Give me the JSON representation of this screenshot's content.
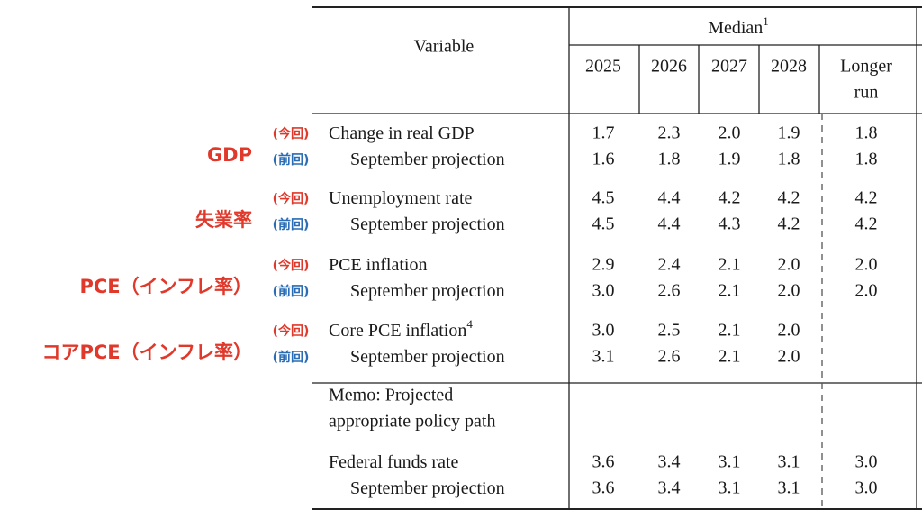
{
  "header": {
    "variable": "Variable",
    "median": "Median",
    "median_note": "1",
    "columns": [
      "2025",
      "2026",
      "2027",
      "2028"
    ],
    "longer_run": [
      "Longer",
      "run"
    ]
  },
  "annotations": [
    {
      "label": "GDP",
      "tags": [
        "(今回)",
        "(前回)"
      ]
    },
    {
      "label": "失業率",
      "tags": [
        "(今回)",
        "(前回)"
      ]
    },
    {
      "label": "PCE（インフレ率）",
      "tags": [
        "(今回)",
        "(前回)"
      ]
    },
    {
      "label": "コアPCE（インフレ率）",
      "tags": [
        "(今回)",
        "(前回)"
      ]
    }
  ],
  "table": {
    "groups": [
      [
        {
          "label": "Change in real GDP",
          "values": [
            "1.7",
            "2.3",
            "2.0",
            "1.9",
            "1.8"
          ]
        },
        {
          "label": "September projection",
          "values": [
            "1.6",
            "1.8",
            "1.9",
            "1.8",
            "1.8"
          ]
        }
      ],
      [
        {
          "label": "Unemployment rate",
          "values": [
            "4.5",
            "4.4",
            "4.2",
            "4.2",
            "4.2"
          ]
        },
        {
          "label": "September projection",
          "values": [
            "4.5",
            "4.4",
            "4.3",
            "4.2",
            "4.2"
          ]
        }
      ],
      [
        {
          "label": "PCE inflation",
          "values": [
            "2.9",
            "2.4",
            "2.1",
            "2.0",
            "2.0"
          ]
        },
        {
          "label": "September projection",
          "values": [
            "3.0",
            "2.6",
            "2.1",
            "2.0",
            "2.0"
          ]
        }
      ],
      [
        {
          "label": "Core PCE inflation",
          "note": "4",
          "values": [
            "3.0",
            "2.5",
            "2.1",
            "2.0",
            null
          ]
        },
        {
          "label": "September projection",
          "values": [
            "3.1",
            "2.6",
            "2.1",
            "2.0",
            null
          ]
        }
      ]
    ],
    "memo": [
      "Memo: Projected",
      "appropriate policy path"
    ],
    "memo_rows": [
      {
        "label": "Federal funds rate",
        "values": [
          "3.6",
          "3.4",
          "3.1",
          "3.1",
          "3.0"
        ]
      },
      {
        "label": "September projection",
        "values": [
          "3.6",
          "3.4",
          "3.1",
          "3.1",
          "3.0"
        ]
      }
    ]
  }
}
